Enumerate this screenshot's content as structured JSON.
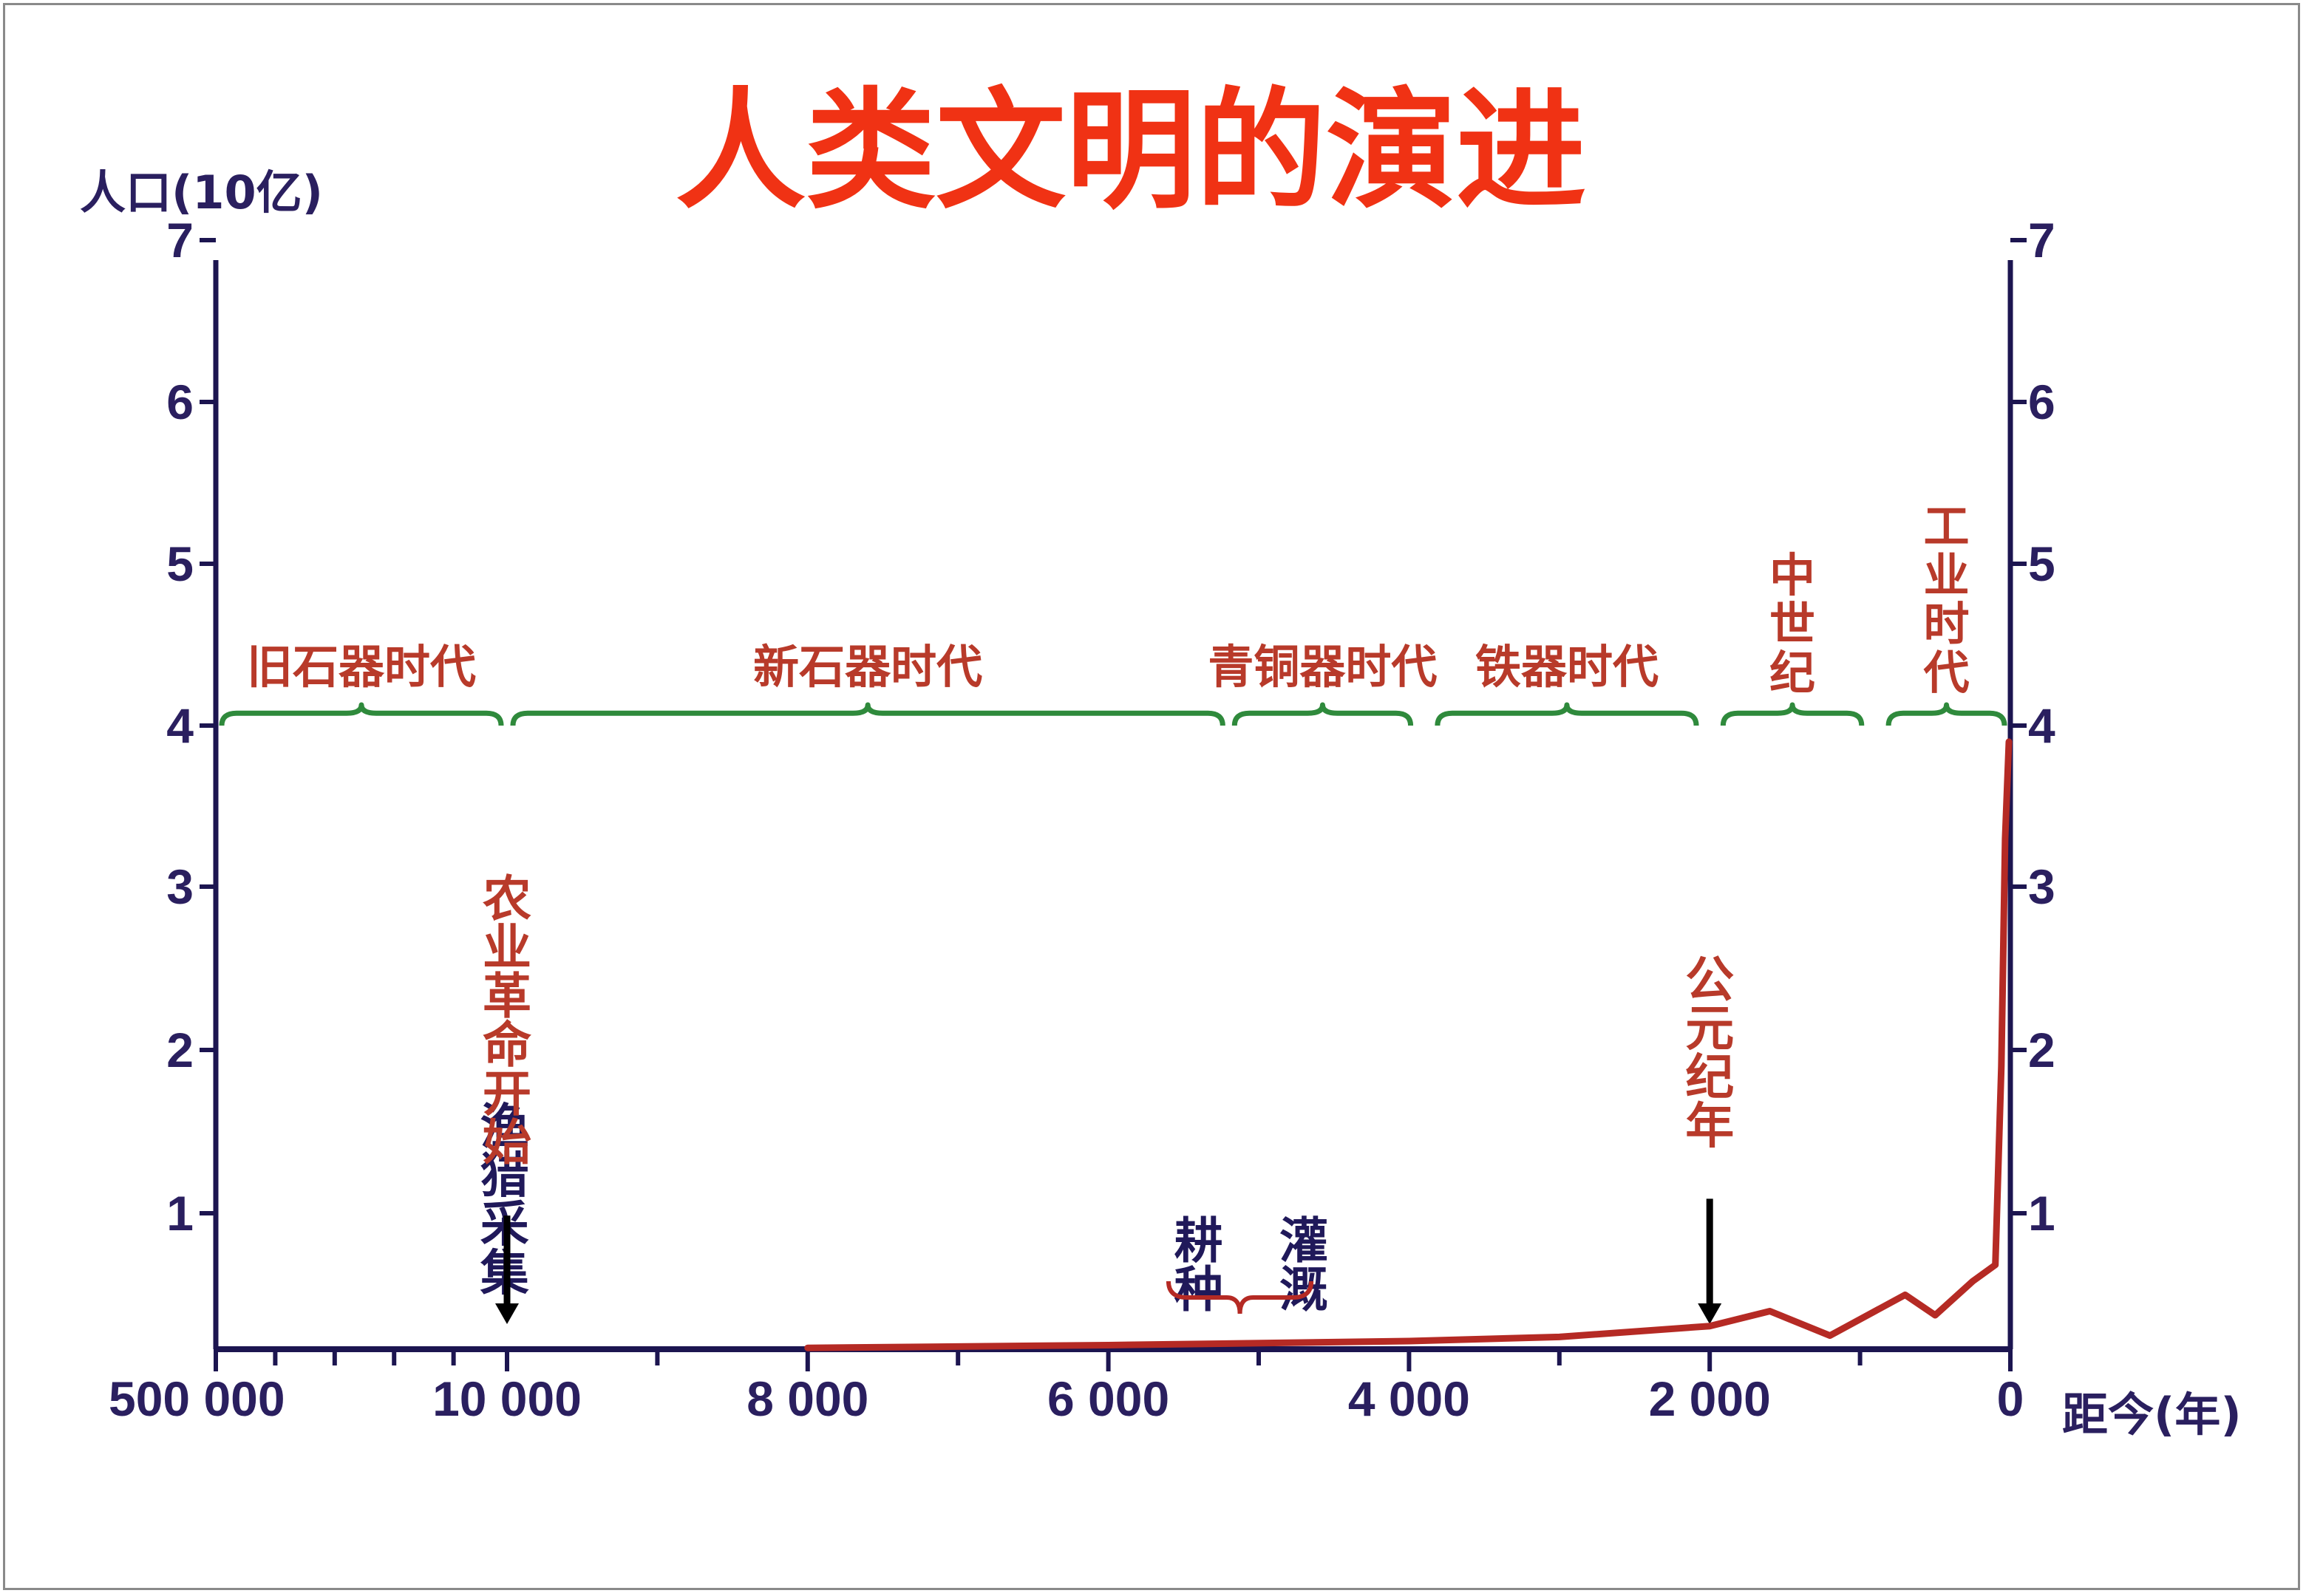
{
  "title": "人类文明的演进",
  "chart_data": {
    "type": "line",
    "ylabel": "人口(10亿)",
    "xlabel": "距今(年)",
    "ylim": [
      0,
      7
    ],
    "y_ticks": [
      1,
      2,
      3,
      4,
      5,
      6,
      7
    ],
    "x_tick_labels": [
      {
        "label": "500 000",
        "value": 500000
      },
      {
        "label": "10 000",
        "value": 10000
      },
      {
        "label": "8 000",
        "value": 8000
      },
      {
        "label": "6 000",
        "value": 6000
      },
      {
        "label": "4 000",
        "value": 4000
      },
      {
        "label": "2 000",
        "value": 2000
      },
      {
        "label": "0",
        "value": 0
      }
    ],
    "series": [
      {
        "color": "#b52a24",
        "points": [
          {
            "x": 8000,
            "y": 0.01
          },
          {
            "x": 6000,
            "y": 0.03
          },
          {
            "x": 4000,
            "y": 0.06
          },
          {
            "x": 3000,
            "y": 0.09
          },
          {
            "x": 2000,
            "y": 0.17
          },
          {
            "x": 1600,
            "y": 0.28
          },
          {
            "x": 1200,
            "y": 0.1
          },
          {
            "x": 700,
            "y": 0.4
          },
          {
            "x": 500,
            "y": 0.25
          },
          {
            "x": 250,
            "y": 0.5
          },
          {
            "x": 100,
            "y": 0.62
          },
          {
            "x": 60,
            "y": 1.9
          },
          {
            "x": 35,
            "y": 3.3
          },
          {
            "x": 10,
            "y": 3.9
          }
        ]
      }
    ],
    "eras": [
      {
        "label": "旧石器时代",
        "from": 500000,
        "to": 10000,
        "vertical": false
      },
      {
        "label": "新石器时代",
        "from": 10000,
        "to": 5200,
        "vertical": false
      },
      {
        "label": "青铜器时代",
        "from": 5200,
        "to": 3950,
        "vertical": false
      },
      {
        "label": "铁器时代",
        "from": 3850,
        "to": 2050,
        "vertical": false
      },
      {
        "label": "中世纪",
        "from": 1950,
        "to": 950,
        "vertical": true
      },
      {
        "label": "工业时代",
        "from": 850,
        "to": 0,
        "vertical": true
      }
    ],
    "annotations": [
      {
        "text": "渔猎采集",
        "x": 14000,
        "y": 1.7,
        "color": "#20195a",
        "arrow": false
      },
      {
        "text": "农业革命开始",
        "x": 10000,
        "y": 3.1,
        "color": "#b83a2a",
        "arrow": true
      },
      {
        "text": "耕种",
        "x": 5400,
        "y": 1.0,
        "color": "#20195a",
        "arrow": false
      },
      {
        "text": "灌溉",
        "x": 4700,
        "y": 1.0,
        "color": "#20195a",
        "arrow": false
      },
      {
        "text": "公元纪年",
        "x": 2000,
        "y": 2.6,
        "color": "#b83a2a",
        "arrow": true
      }
    ],
    "colors": {
      "axis": "#1c1550",
      "brace": "#2f8a3c",
      "era_text": "#b83a2a",
      "note_text": "#20195a",
      "line": "#b52a24",
      "title": "#f03214"
    }
  }
}
